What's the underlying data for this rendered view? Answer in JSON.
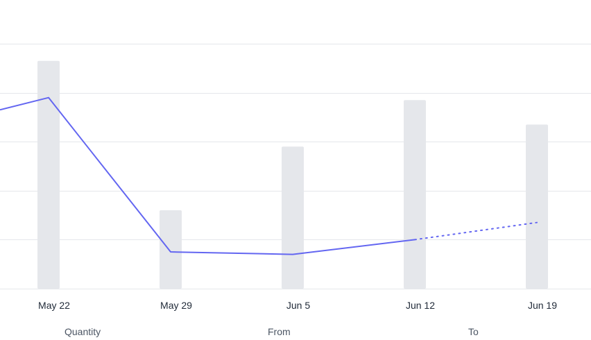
{
  "chart_data": {
    "type": "bar",
    "categories": [
      "May 22",
      "May 29",
      "Jun 5",
      "Jun 12",
      "Jun 19"
    ],
    "bars": {
      "values": [
        93,
        32,
        58,
        77,
        67
      ],
      "color": "#e5e7eb"
    },
    "line": {
      "start_value": 73,
      "values": [
        78,
        15,
        14,
        20,
        27
      ],
      "projected_from_index": 3,
      "color": "#6366f1"
    },
    "ylim": [
      0,
      100
    ],
    "grid": true
  },
  "footer": {
    "quantity_label": "Quantity",
    "from_label": "From",
    "to_label": "To"
  }
}
